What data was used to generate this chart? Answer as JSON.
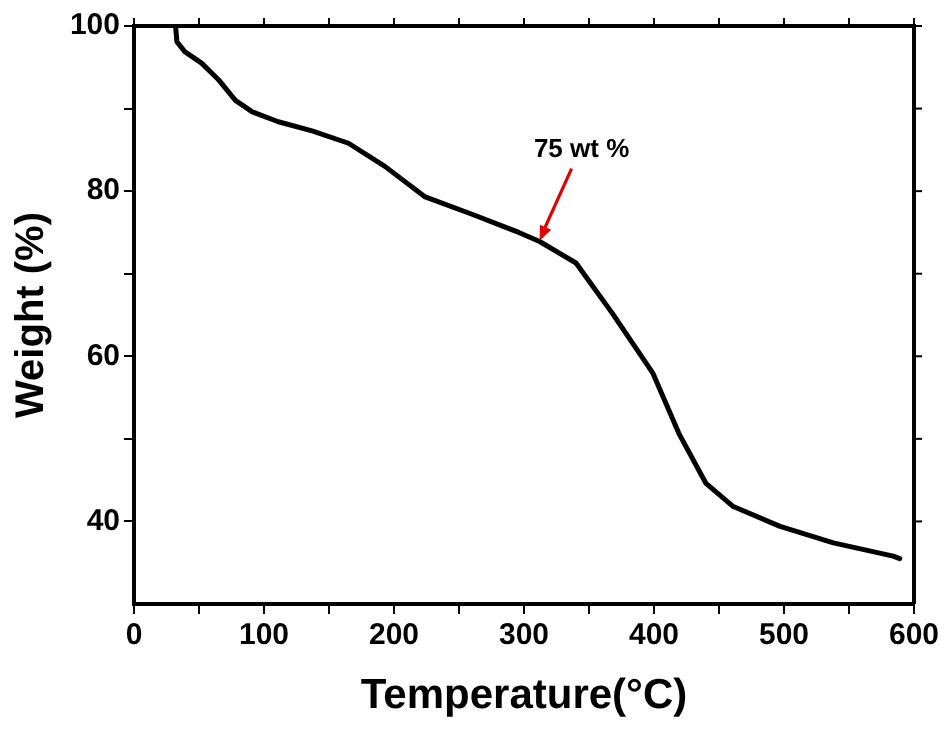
{
  "chart_data": {
    "type": "line",
    "xlabel": "Temperature(°C)",
    "ylabel": "Weight (%)",
    "xlim": [
      0,
      600
    ],
    "xticks": [
      0,
      {
        "value": 50,
        "label": null
      },
      100,
      {
        "value": 150,
        "label": null
      },
      200,
      {
        "value": 250,
        "label": null
      },
      300,
      {
        "value": 350,
        "label": null
      },
      400,
      {
        "value": 450,
        "label": null
      },
      500,
      {
        "value": 550,
        "label": null
      },
      600
    ],
    "ylim": [
      30,
      100
    ],
    "yticks": [
      40,
      {
        "value": 50,
        "label": null
      },
      60,
      {
        "value": 70,
        "label": null
      },
      80,
      {
        "value": 90,
        "label": null
      },
      100
    ],
    "grid": false,
    "legend": false,
    "marker": "none",
    "line_style": "solid",
    "annotations": [
      {
        "text": "75 wt %",
        "x": 312,
        "y": 74
      }
    ],
    "series": [
      {
        "color": "#000000",
        "x": [
          32,
          33,
          39,
          52,
          65,
          78,
          91,
          111,
          137,
          165,
          193,
          224,
          260,
          296,
          312,
          340,
          368,
          399,
          419,
          440,
          461,
          497,
          538,
          584,
          589
        ],
        "values": [
          100,
          98.1,
          96.9,
          95.5,
          93.5,
          91,
          89.6,
          88.4,
          87.3,
          85.8,
          83,
          79.3,
          77.2,
          75,
          73.9,
          71.3,
          65.2,
          58,
          50.7,
          44.6,
          41.8,
          39.4,
          37.4,
          35.8,
          35.5
        ]
      }
    ]
  }
}
